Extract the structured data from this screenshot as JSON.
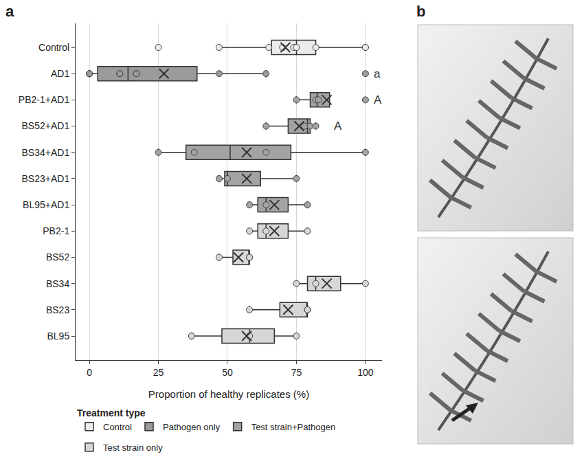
{
  "panels": [
    "a",
    "b"
  ],
  "chart_data": {
    "type": "box",
    "orientation": "horizontal",
    "x_label": "Proportion of healthy replicates (%)",
    "xlim": [
      -5,
      106
    ],
    "xticks": [
      0,
      25,
      50,
      75,
      100
    ],
    "grid": true,
    "legend": "bottom",
    "legend_title": "Treatment type",
    "categories": [
      "Control",
      "AD1",
      "PB2-1+AD1",
      "BS52+AD1",
      "BS34+AD1",
      "BS23+AD1",
      "BL95+AD1",
      "PB2-1",
      "BS52",
      "BS34",
      "BS23",
      "BL95"
    ],
    "series": [
      {
        "name": "Control",
        "color": "#ececec",
        "boxes": [
          {
            "category": "Control",
            "points": [
              25,
              47,
              65,
              70,
              74,
              75,
              82,
              100,
              100
            ],
            "q1": 66,
            "median": 75,
            "q3": 82,
            "lower": 47,
            "upper": 100,
            "mean": 71
          }
        ]
      },
      {
        "name": "Pathogen only",
        "color": "#9b9b9b",
        "boxes": [
          {
            "category": "AD1",
            "points": [
              0,
              0,
              0,
              11,
              11,
              17,
              17,
              47,
              64,
              100
            ],
            "q1": 3,
            "median": 14,
            "q3": 39,
            "lower": 0,
            "upper": 64,
            "mean": 27
          }
        ]
      },
      {
        "name": "Test strain+Pathogen",
        "color": "#a3a3a3",
        "boxes": [
          {
            "category": "PB2-1+AD1",
            "points": [
              75,
              82,
              83,
              100
            ],
            "q1": 80,
            "median": 82.5,
            "q3": 87,
            "lower": 75,
            "upper": 87,
            "mean": 86
          },
          {
            "category": "BS52+AD1",
            "points": [
              64,
              78,
              80,
              82
            ],
            "q1": 72,
            "median": 79,
            "q3": 80,
            "lower": 64,
            "upper": 82,
            "mean": 76
          },
          {
            "category": "BS34+AD1",
            "points": [
              25,
              38,
              64,
              100
            ],
            "q1": 35,
            "median": 51,
            "q3": 73,
            "lower": 25,
            "upper": 100,
            "mean": 57
          },
          {
            "category": "BS23+AD1",
            "points": [
              47,
              50,
              75
            ],
            "q1": 49,
            "median": 50,
            "q3": 62,
            "lower": 47,
            "upper": 75,
            "mean": 57
          },
          {
            "category": "BL95+AD1",
            "points": [
              58,
              64,
              79
            ],
            "q1": 61,
            "median": 64,
            "q3": 72,
            "lower": 58,
            "upper": 79,
            "mean": 67
          }
        ]
      },
      {
        "name": "Test strain only",
        "color": "#d6d6d6",
        "boxes": [
          {
            "category": "PB2-1",
            "points": [
              58,
              64,
              79
            ],
            "q1": 61,
            "median": 64,
            "q3": 72,
            "lower": 58,
            "upper": 79,
            "mean": 67
          },
          {
            "category": "BS52",
            "points": [
              47,
              58,
              58
            ],
            "q1": 52,
            "median": 58,
            "q3": 58,
            "lower": 47,
            "upper": 58,
            "mean": 54
          },
          {
            "category": "BS34",
            "points": [
              75,
              82,
              100
            ],
            "q1": 79,
            "median": 82,
            "q3": 91,
            "lower": 75,
            "upper": 100,
            "mean": 86
          },
          {
            "category": "BS23",
            "points": [
              58,
              79,
              79
            ],
            "q1": 69,
            "median": 79,
            "q3": 79,
            "lower": 58,
            "upper": 79,
            "mean": 72
          },
          {
            "category": "BL95",
            "points": [
              37,
              58,
              75
            ],
            "q1": 48,
            "median": 58,
            "q3": 67,
            "lower": 37,
            "upper": 75,
            "mean": 57
          }
        ]
      }
    ],
    "annotations": [
      {
        "category": "AD1",
        "text": "a"
      },
      {
        "category": "PB2-1+AD1",
        "text": "A"
      },
      {
        "category": "BS52+AD1",
        "text": "A"
      }
    ]
  }
}
